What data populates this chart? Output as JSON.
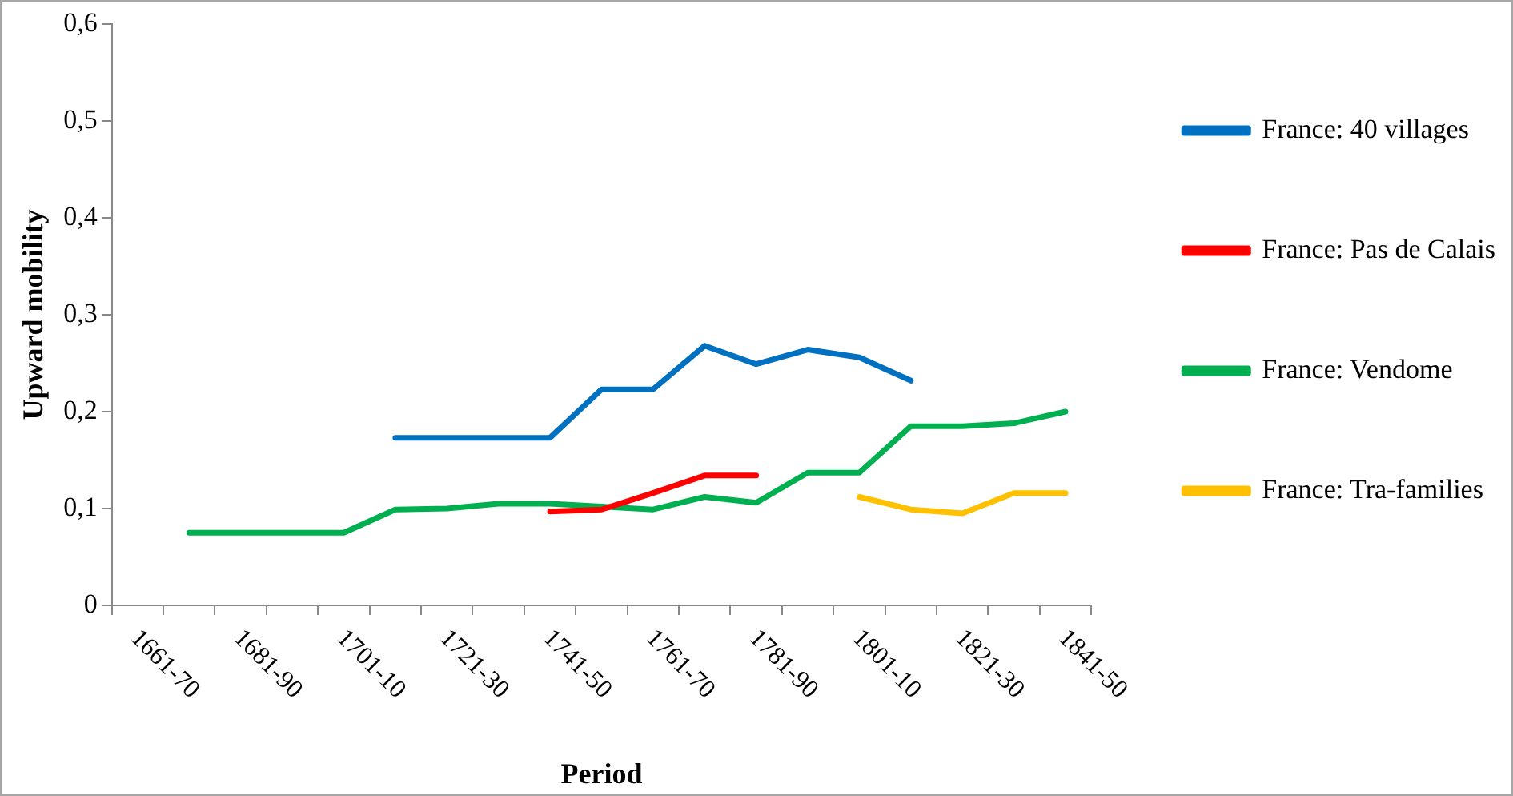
{
  "chart_data": {
    "type": "line",
    "xlabel": "Period",
    "ylabel": "Upward mobility",
    "categories": [
      "1661-70",
      null,
      "1681-90",
      null,
      "1701-10",
      null,
      "1721-30",
      null,
      "1741-50",
      null,
      "1761-70",
      null,
      "1781-90",
      null,
      "1801-10",
      null,
      "1821-30",
      null,
      "1841-50"
    ],
    "series": [
      {
        "name": "France: 40 villages",
        "color": "#0070c0",
        "values": [
          null,
          null,
          null,
          null,
          null,
          0.173,
          0.173,
          0.173,
          0.173,
          0.223,
          0.223,
          0.268,
          0.249,
          0.264,
          0.256,
          0.232,
          null,
          null,
          null
        ]
      },
      {
        "name": "France: Pas de Calais",
        "color": "#ff0000",
        "values": [
          null,
          null,
          null,
          null,
          null,
          null,
          null,
          null,
          0.097,
          0.099,
          0.116,
          0.134,
          0.134,
          null,
          null,
          null,
          null,
          null,
          null
        ]
      },
      {
        "name": "France: Vendome",
        "color": "#00b050",
        "values": [
          null,
          0.075,
          0.075,
          0.075,
          0.075,
          0.099,
          0.1,
          0.105,
          0.105,
          0.102,
          0.099,
          0.112,
          0.106,
          0.137,
          0.137,
          0.185,
          0.185,
          0.188,
          0.2
        ]
      },
      {
        "name": "France: Tra-families",
        "color": "#ffc000",
        "values": [
          null,
          null,
          null,
          null,
          null,
          null,
          null,
          null,
          null,
          null,
          null,
          null,
          null,
          null,
          0.112,
          0.099,
          0.095,
          0.116,
          0.116
        ]
      }
    ],
    "ylim": [
      0,
      0.6
    ],
    "yticks": [
      {
        "value": 0,
        "label": "0"
      },
      {
        "value": 0.1,
        "label": "0,1"
      },
      {
        "value": 0.2,
        "label": "0,2"
      },
      {
        "value": 0.3,
        "label": "0,3"
      },
      {
        "value": 0.4,
        "label": "0,4"
      },
      {
        "value": 0.5,
        "label": "0,5"
      },
      {
        "value": 0.6,
        "label": "0,6"
      }
    ],
    "grid": false,
    "legend": "right",
    "marker": "none",
    "line_style": "solid"
  }
}
